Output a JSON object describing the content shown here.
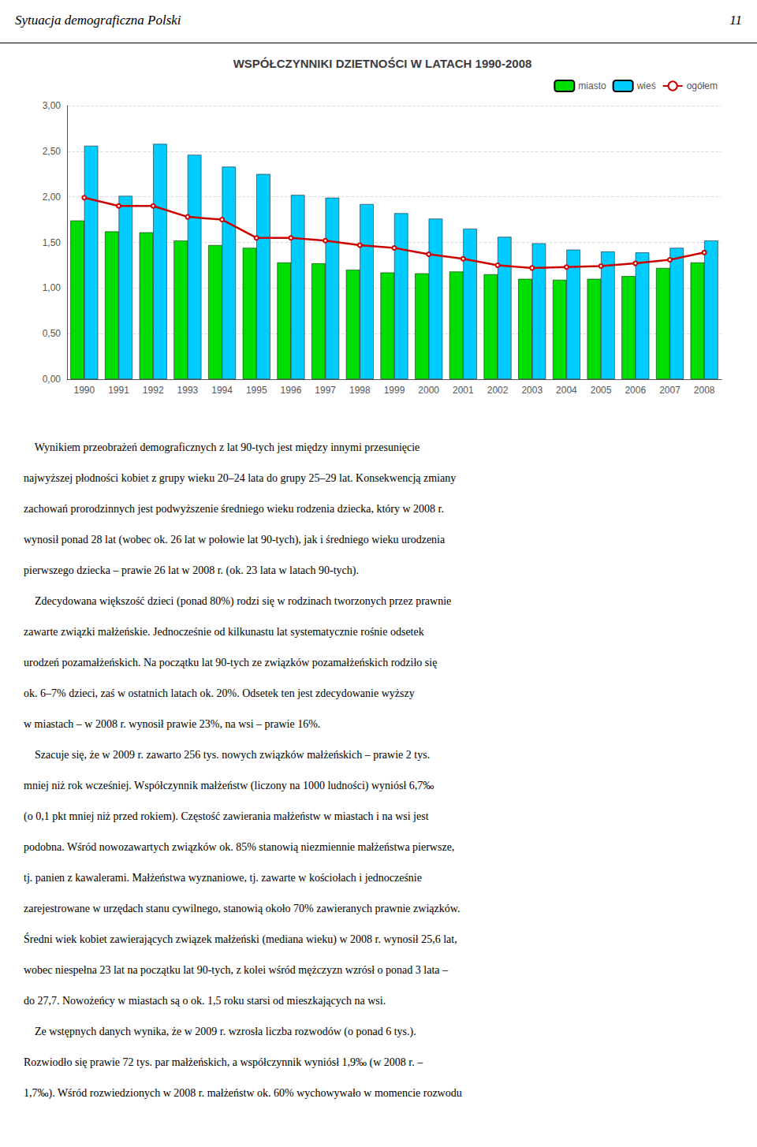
{
  "chart_data": {
    "type": "bar",
    "title": "WSPÓŁCZYNNIKI DZIETNOŚCI W LATACH 1990-2008",
    "categories": [
      "1990",
      "1991",
      "1992",
      "1993",
      "1994",
      "1995",
      "1996",
      "1997",
      "1998",
      "1999",
      "2000",
      "2001",
      "2002",
      "2003",
      "2004",
      "2005",
      "2006",
      "2007",
      "2008"
    ],
    "series": [
      {
        "name": "miasto",
        "type": "bar",
        "color": "#00dd00",
        "values": [
          1.74,
          1.62,
          1.61,
          1.52,
          1.47,
          1.44,
          1.28,
          1.27,
          1.2,
          1.17,
          1.16,
          1.18,
          1.15,
          1.1,
          1.09,
          1.1,
          1.13,
          1.22,
          1.28
        ]
      },
      {
        "name": "wieś",
        "type": "bar",
        "color": "#00ccff",
        "values": [
          2.56,
          2.01,
          2.58,
          2.46,
          2.33,
          2.25,
          2.02,
          1.99,
          1.92,
          1.82,
          1.76,
          1.65,
          1.56,
          1.49,
          1.42,
          1.4,
          1.39,
          1.44,
          1.52
        ]
      },
      {
        "name": "ogółem",
        "type": "line",
        "color": "#cc0000",
        "values": [
          1.99,
          1.9,
          1.9,
          1.78,
          1.75,
          1.55,
          1.55,
          1.52,
          1.47,
          1.44,
          1.37,
          1.32,
          1.25,
          1.22,
          1.23,
          1.24,
          1.27,
          1.31,
          1.39
        ]
      }
    ],
    "ylim": [
      0.0,
      3.0
    ],
    "yticks": [
      {
        "value": 0.0,
        "label": "0,00"
      },
      {
        "value": 0.5,
        "label": "0,50"
      },
      {
        "value": 1.0,
        "label": "1,00"
      },
      {
        "value": 1.5,
        "label": "1,50"
      },
      {
        "value": 2.0,
        "label": "2,00"
      },
      {
        "value": 2.5,
        "label": "2,50"
      },
      {
        "value": 3.0,
        "label": "3,00"
      }
    ],
    "grid": true,
    "legend": "upper right"
  },
  "header_text": "Sytuacja demograficzna Polski",
  "page_number": "11",
  "body_text": [
    "    Wynikiem przeobrażeń demograficznych z lat 90-tych jest między innymi przesunięcie",
    "najwyższej płodności kobiet z grupy wieku 20–24 lata do grupy 25–29 lat. Konsekwencją zmiany",
    "zachowań prorodzinnych jest podwyższenie średniego wieku rodzenia dziecka, który w 2008 r.",
    "wynosił ponad 28 lat (wobec ok. 26 lat w połowie lat 90-tych), jak i średniego wieku urodzenia",
    "pierwszego dziecka – prawie 26 lat w 2008 r. (ok. 23 lata w latach 90-tych).",
    "    Zdecydowana większość dzieci (ponad 80%) rodzi się w rodzinach tworzonych przez prawnie",
    "zawarte związki małżeńskie. Jednocześnie od kilkunastu lat systematycznie rośnie odsetek",
    "urodzeń pozamałżeńskich. Na początku lat 90-tych ze związków pozamałżeńskich rodziło się",
    "ok. 6–7% dzieci, zaś w ostatnich latach ok. 20%. Odsetek ten jest zdecydowanie wyższy",
    "w miastach – w 2008 r. wynosił prawie 23%, na wsi – prawie 16%.",
    "    Szacuje się, że w 2009 r. zawarto 256 tys. nowych związków małżeńskich – prawie 2 tys.",
    "mniej niż rok wcześniej. Współczynnik małżeństw (liczony na 1000 ludności) wyniósł 6,7‰",
    "(o 0,1 pkt mniej niż przed rokiem). Częstość zawierania małżeństw w miastach i na wsi jest",
    "podobna. Wśród nowozawartych związków ok. 85% stanowią niezmiennie małżeństwa pierwsze,",
    "tj. panien z kawalerami. Małżeństwa wyznaniowe, tj. zawarte w kościołach i jednocześnie",
    "zarejestrowane w urzędach stanu cywilnego, stanowią około 70% zawieranych prawnie związków.",
    "Średni wiek kobiet zawierających związek małżeński (mediana wieku) w 2008 r. wynosił 25,6 lat,",
    "wobec niespełna 23 lat na początku lat 90-tych, z kolei wśród mężczyzn wzrósł o ponad 3 lata –",
    "do 27,7. Nowożeńcy w miastach są o ok. 1,5 roku starsi od mieszkających na wsi.",
    "    Ze wstępnych danych wynika, że w 2009 r. wzrosła liczba rozwodów (o ponad 6 tys.).",
    "Rozwiodło się prawie 72 tys. par małżeńskich, a współczynnik wyniósł 1,9‰ (w 2008 r. –",
    "1,7‰). Wśród rozwiedzionych w 2008 r. małżeństw ok. 60% wychowywało w momencie rozwodu"
  ]
}
